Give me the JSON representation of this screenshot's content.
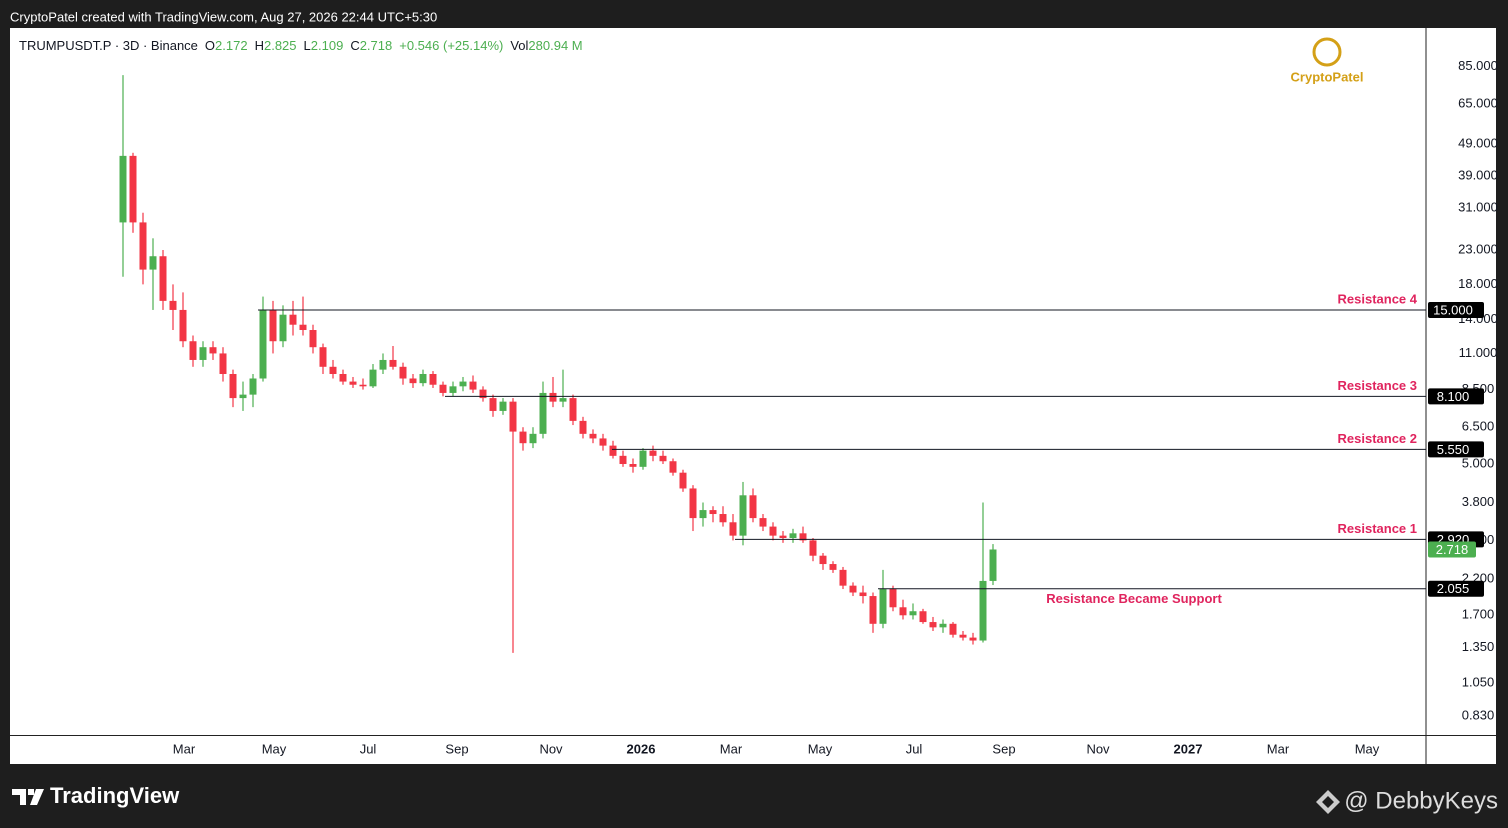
{
  "header": {
    "credit": "CryptoPatel created with TradingView.com, Aug 27, 2026 22:44 UTC+5:30",
    "symbol": "TRUMPUSDT.P · 3D · Binance",
    "o": "O",
    "h": "H",
    "l": "L",
    "c": "C",
    "change": "+0.546 (+25.14%)",
    "vol": "Vol",
    "volume": "280.94 M"
  },
  "watermark": "CryptoPatel",
  "footer": {
    "brand": "TradingView",
    "handle": "@ DebbyKeys"
  },
  "chart_data": {
    "type": "candlestick",
    "log_scale": true,
    "up_color": "#4caf50",
    "down_color": "#f23645",
    "open": [
      28,
      45,
      28,
      20,
      22,
      16,
      15,
      12,
      10.5,
      11.5,
      11,
      9.5,
      8,
      8.2,
      9.2,
      15,
      12,
      14.5,
      13.5,
      13,
      11.5,
      10,
      9.5,
      9,
      8.8,
      8.7,
      9.8,
      10.5,
      10,
      9.2,
      8.9,
      9.5,
      8.8,
      8.3,
      8.7,
      9,
      8.5,
      8,
      7.3,
      7.8,
      6.3,
      5.8,
      6.2,
      8.3,
      7.8,
      8,
      6.8,
      6.2,
      6,
      5.7,
      5.3,
      5,
      4.9,
      5.5,
      5.3,
      5.1,
      4.7,
      4.2,
      3.4,
      3.6,
      3.5,
      3.3,
      3,
      4,
      3.4,
      3.2,
      3,
      2.95,
      3.05,
      2.9,
      2.6,
      2.45,
      2.35,
      2.1,
      2,
      1.95,
      1.6,
      2.05,
      1.8,
      1.7,
      1.75,
      1.62,
      1.56,
      1.6,
      1.48,
      1.45,
      1.42,
      2.172
    ],
    "high": [
      80,
      46,
      30,
      25,
      23,
      18,
      17,
      12.5,
      12,
      12,
      11.5,
      9.8,
      9,
      9.5,
      16.5,
      16,
      15.5,
      16,
      16.5,
      13.5,
      11.8,
      10.5,
      9.8,
      9.3,
      9.2,
      10.2,
      11,
      11.6,
      10.3,
      9.5,
      9.8,
      9.7,
      9,
      9,
      9.3,
      9.4,
      8.7,
      8.2,
      8,
      8,
      6.5,
      6.5,
      9,
      9.3,
      9.8,
      8.2,
      7,
      6.4,
      6.2,
      5.9,
      5.5,
      5.2,
      5.6,
      5.7,
      5.5,
      5.2,
      4.8,
      4.3,
      3.8,
      3.7,
      3.7,
      3.5,
      4.4,
      4.2,
      3.5,
      3.3,
      3.1,
      3.15,
      3.2,
      2.95,
      2.65,
      2.5,
      2.4,
      2.15,
      2.1,
      2,
      2.35,
      2.1,
      1.9,
      1.85,
      1.78,
      1.68,
      1.65,
      1.62,
      1.52,
      1.5,
      3.8,
      2.825
    ],
    "low": [
      19,
      26,
      18,
      15,
      15,
      13,
      11.5,
      10,
      10,
      10.5,
      9,
      7.5,
      7.3,
      7.5,
      9,
      11,
      11.5,
      12.5,
      12.5,
      11,
      9.5,
      9.2,
      8.8,
      8.6,
      8.5,
      8.6,
      9.5,
      9.8,
      8.8,
      8.6,
      8.7,
      8.6,
      8.1,
      8.1,
      8.4,
      8.3,
      7.8,
      7,
      7.1,
      1.3,
      5.5,
      5.6,
      6,
      7.5,
      7.5,
      6.6,
      6,
      5.8,
      5.5,
      5.2,
      4.9,
      4.7,
      4.8,
      5.1,
      5,
      4.6,
      4.1,
      3.1,
      3.2,
      3.3,
      3.2,
      2.9,
      2.8,
      3.3,
      3.1,
      2.9,
      2.85,
      2.85,
      2.85,
      2.5,
      2.35,
      2.3,
      2.05,
      1.95,
      1.85,
      1.5,
      1.55,
      1.75,
      1.65,
      1.65,
      1.6,
      1.52,
      1.5,
      1.45,
      1.42,
      1.38,
      1.4,
      2.109
    ],
    "close": [
      45,
      28,
      20,
      22,
      16,
      15,
      12,
      10.5,
      11.5,
      11,
      9.5,
      8,
      8.2,
      9.2,
      15,
      12,
      14.5,
      13.5,
      13,
      11.5,
      10,
      9.5,
      9,
      8.8,
      8.7,
      9.8,
      10.5,
      10,
      9.2,
      8.9,
      9.5,
      8.8,
      8.3,
      8.7,
      9,
      8.5,
      8,
      7.3,
      7.8,
      6.3,
      5.8,
      6.2,
      8.3,
      7.8,
      8,
      6.8,
      6.2,
      6,
      5.7,
      5.3,
      5,
      4.9,
      5.5,
      5.3,
      5.1,
      4.7,
      4.2,
      3.4,
      3.6,
      3.5,
      3.3,
      3,
      4,
      3.4,
      3.2,
      3,
      2.95,
      3.05,
      2.9,
      2.6,
      2.45,
      2.35,
      2.1,
      2,
      1.95,
      1.6,
      2.05,
      1.8,
      1.7,
      1.75,
      1.62,
      1.56,
      1.6,
      1.48,
      1.45,
      1.42,
      2.172,
      2.718
    ],
    "xlim": [
      -11.3,
      130.3
    ],
    "xticks": [
      {
        "value": 6.1,
        "label": "Mar"
      },
      {
        "value": 15.1,
        "label": "May"
      },
      {
        "value": 24.5,
        "label": "Jul"
      },
      {
        "value": 33.4,
        "label": "Sep"
      },
      {
        "value": 42.8,
        "label": "Nov"
      },
      {
        "value": 51.8,
        "label": "2026"
      },
      {
        "value": 60.8,
        "label": "Mar"
      },
      {
        "value": 69.7,
        "label": "May"
      },
      {
        "value": 79.1,
        "label": "Jul"
      },
      {
        "value": 88.1,
        "label": "Sep"
      },
      {
        "value": 97.5,
        "label": "Nov"
      },
      {
        "value": 106.5,
        "label": "2027"
      },
      {
        "value": 115.5,
        "label": "Mar"
      },
      {
        "value": 124.4,
        "label": "May"
      }
    ],
    "ylim": [
      0.724,
      112
    ],
    "yticks": [
      {
        "value": 85,
        "label": "85.000"
      },
      {
        "value": 65,
        "label": "65.000"
      },
      {
        "value": 49,
        "label": "49.000"
      },
      {
        "value": 39,
        "label": "39.000"
      },
      {
        "value": 31,
        "label": "31.000"
      },
      {
        "value": 23,
        "label": "23.000"
      },
      {
        "value": 18,
        "label": "18.000"
      },
      {
        "value": 14,
        "label": "14.000"
      },
      {
        "value": 11,
        "label": "11.000"
      },
      {
        "value": 8.5,
        "label": "8.500"
      },
      {
        "value": 6.5,
        "label": "6.500"
      },
      {
        "value": 5,
        "label": "5.000"
      },
      {
        "value": 3.8,
        "label": "3.800"
      },
      {
        "value": 2.9,
        "label": "2.900"
      },
      {
        "value": 2.2,
        "label": "2.200"
      },
      {
        "value": 1.7,
        "label": "1.700"
      },
      {
        "value": 1.35,
        "label": "1.350"
      },
      {
        "value": 1.05,
        "label": "1.050"
      },
      {
        "value": 0.83,
        "label": "0.830"
      }
    ],
    "levels": [
      {
        "name": "Resistance 4",
        "value": 15,
        "label": "15.000",
        "start_index": 13.5
      },
      {
        "name": "Resistance 3",
        "value": 8.1,
        "label": "8.100",
        "start_index": 32.2
      },
      {
        "name": "Resistance 2",
        "value": 5.55,
        "label": "5.550",
        "start_index": 48.9
      },
      {
        "name": "Resistance 1",
        "value": 2.92,
        "label": "2.920",
        "start_index": 61.2
      },
      {
        "name": "Resistance Became Support",
        "value": 2.055,
        "label": "2.055",
        "start_index": 75.5
      }
    ]
  }
}
